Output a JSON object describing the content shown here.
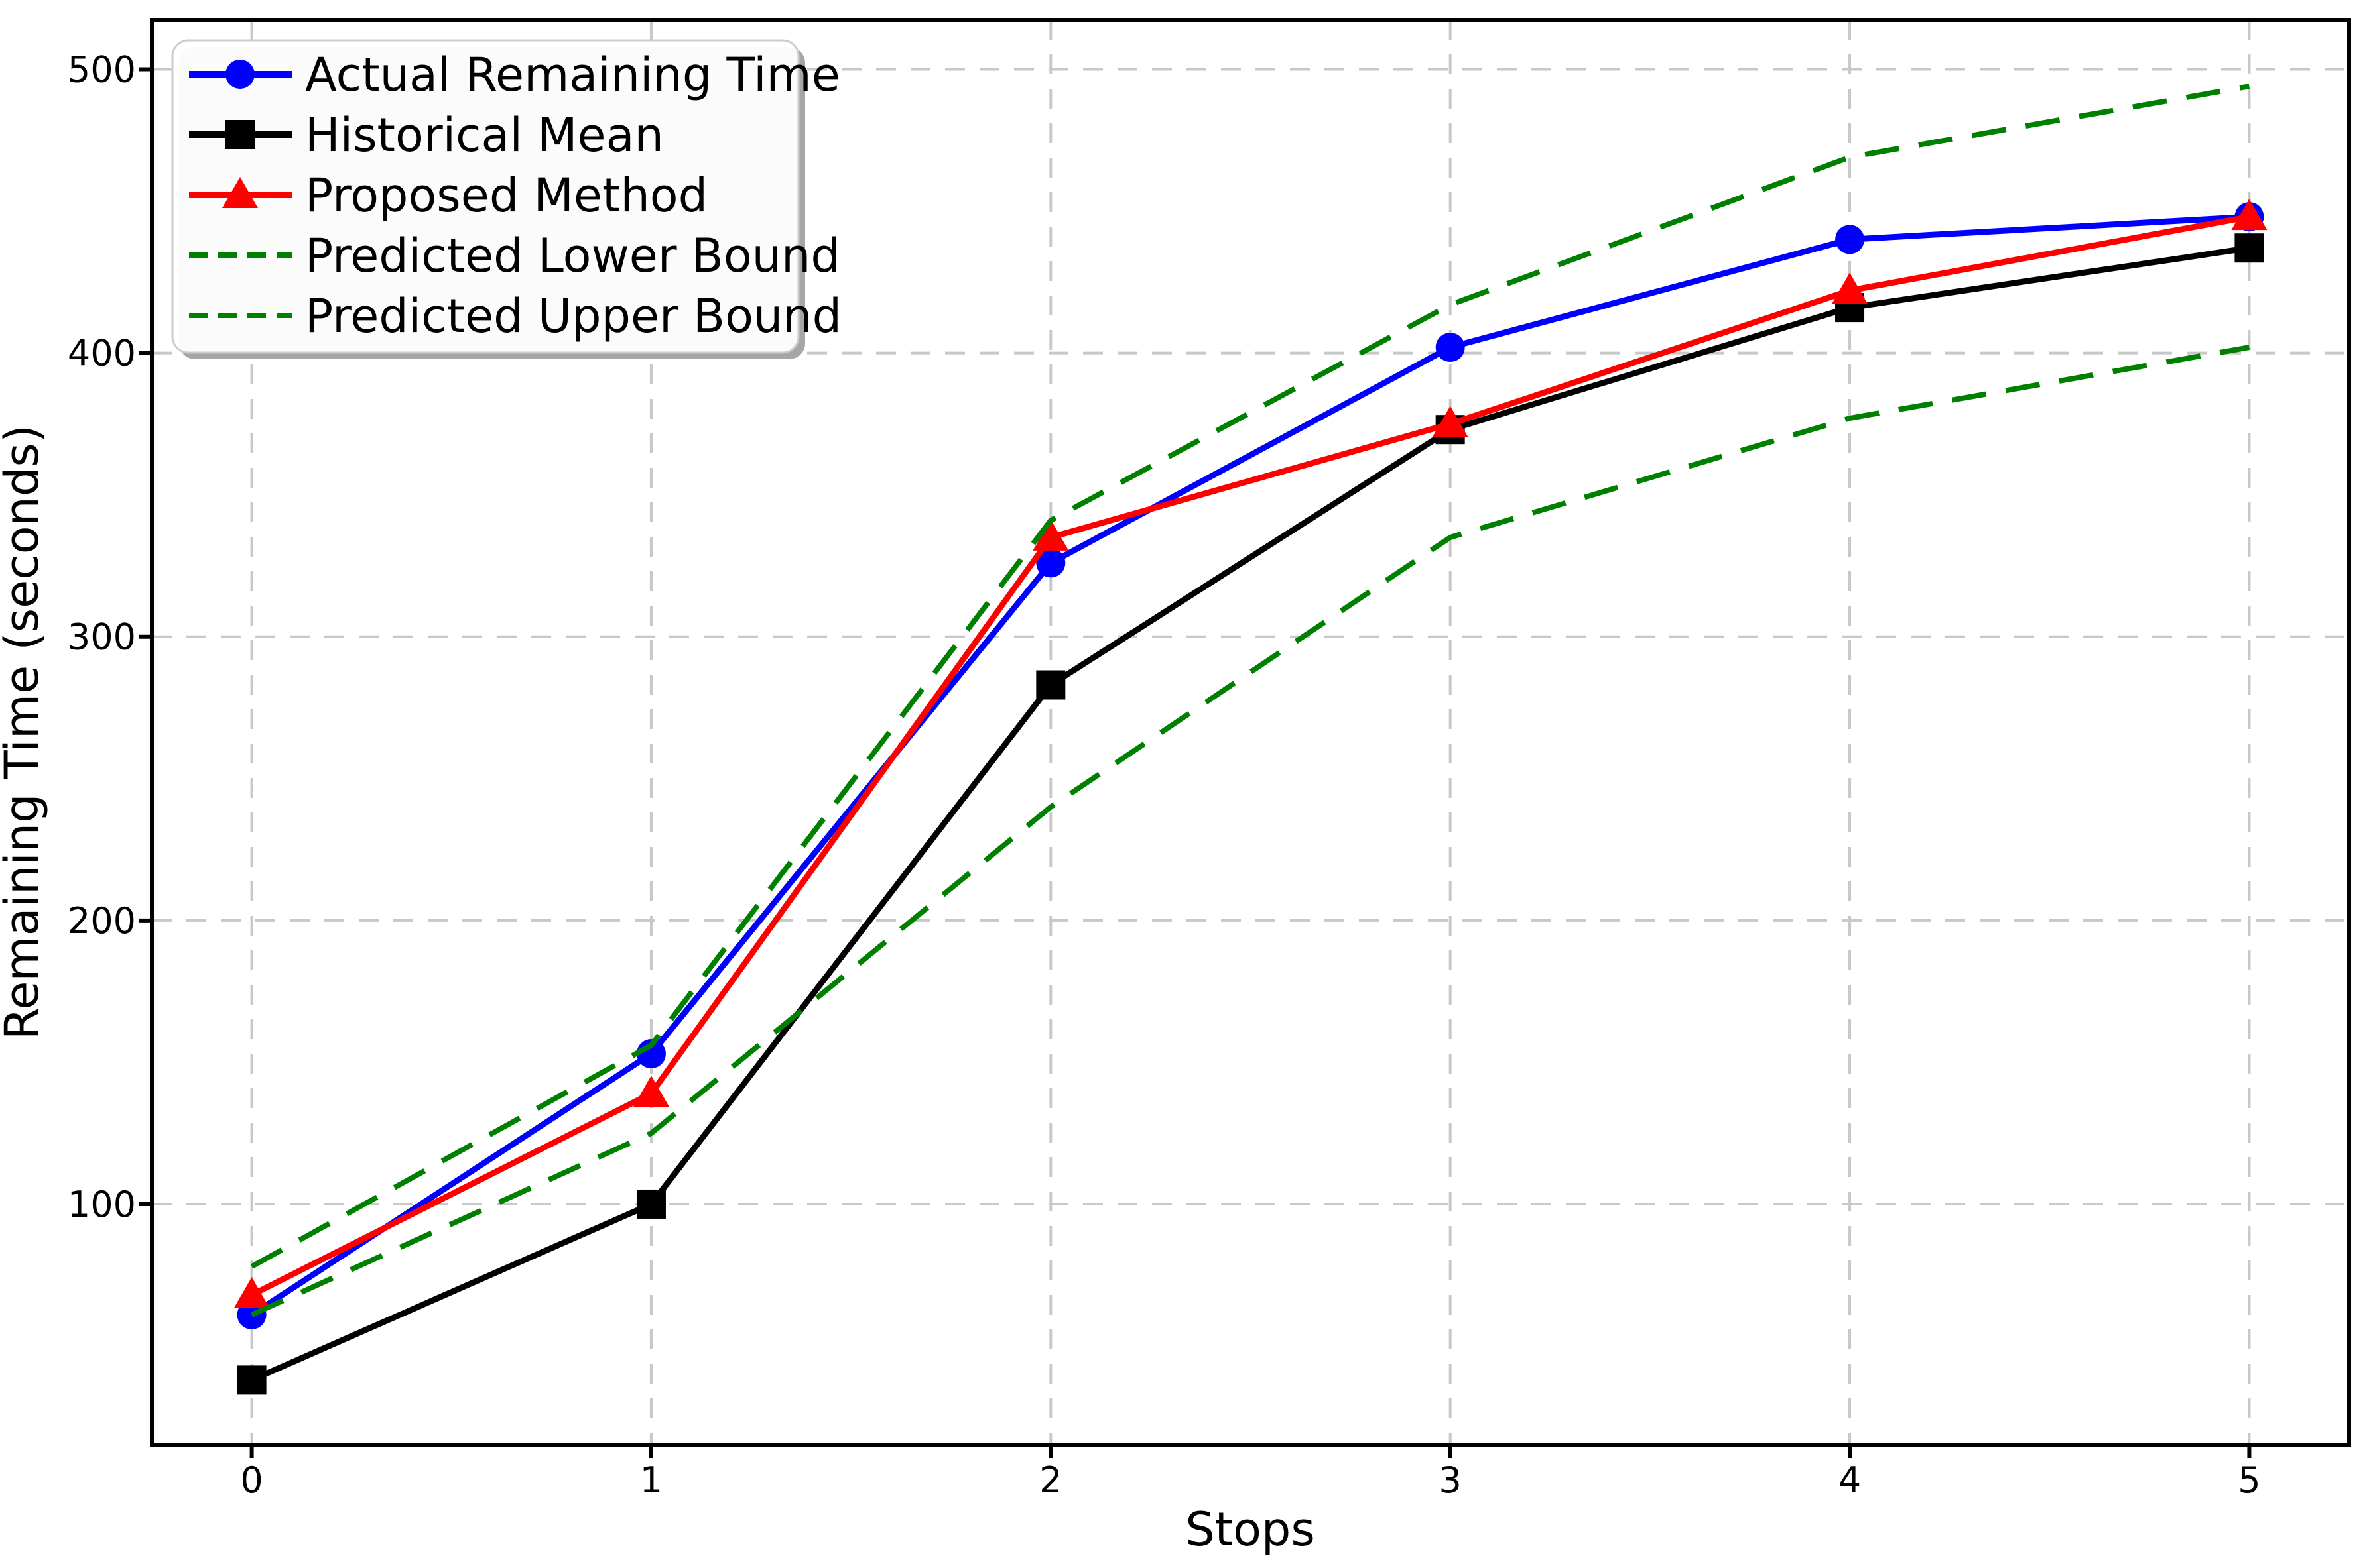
{
  "chart_data": {
    "type": "line",
    "title": "",
    "xlabel": "Stops",
    "ylabel": "Remaining Time (seconds)",
    "x": [
      0,
      1,
      2,
      3,
      4,
      5
    ],
    "xticks": [
      "0",
      "1",
      "2",
      "3",
      "4",
      "5"
    ],
    "yticks": [
      "100",
      "200",
      "300",
      "400",
      "500"
    ],
    "ytick_values": [
      100,
      200,
      300,
      400,
      500
    ],
    "xlim": [
      -0.25,
      5.25
    ],
    "ylim": [
      15.2,
      517.4
    ],
    "grid": true,
    "grid_color": "#c8c8c8",
    "axis_color": "#000000",
    "legend_position": "upper left",
    "series": [
      {
        "name": "Actual Remaining Time",
        "color": "#0000ff",
        "style": "solid",
        "marker": "circle",
        "values": [
          61,
          153,
          326,
          402,
          440,
          448
        ]
      },
      {
        "name": "Historical Mean",
        "color": "#000000",
        "style": "solid",
        "marker": "square",
        "values": [
          38,
          100,
          283,
          373,
          416,
          437
        ]
      },
      {
        "name": "Proposed Method",
        "color": "#ff0000",
        "style": "solid",
        "marker": "triangle",
        "values": [
          68,
          139,
          335,
          375,
          422,
          448
        ]
      },
      {
        "name": "Predicted Lower Bound",
        "color": "#008000",
        "style": "dashed",
        "marker": "none",
        "values": [
          61,
          125,
          240,
          335,
          377,
          402
        ]
      },
      {
        "name": "Predicted Upper Bound",
        "color": "#008000",
        "style": "dashed",
        "marker": "none",
        "values": [
          78,
          156,
          341,
          417,
          469,
          494
        ]
      }
    ]
  }
}
